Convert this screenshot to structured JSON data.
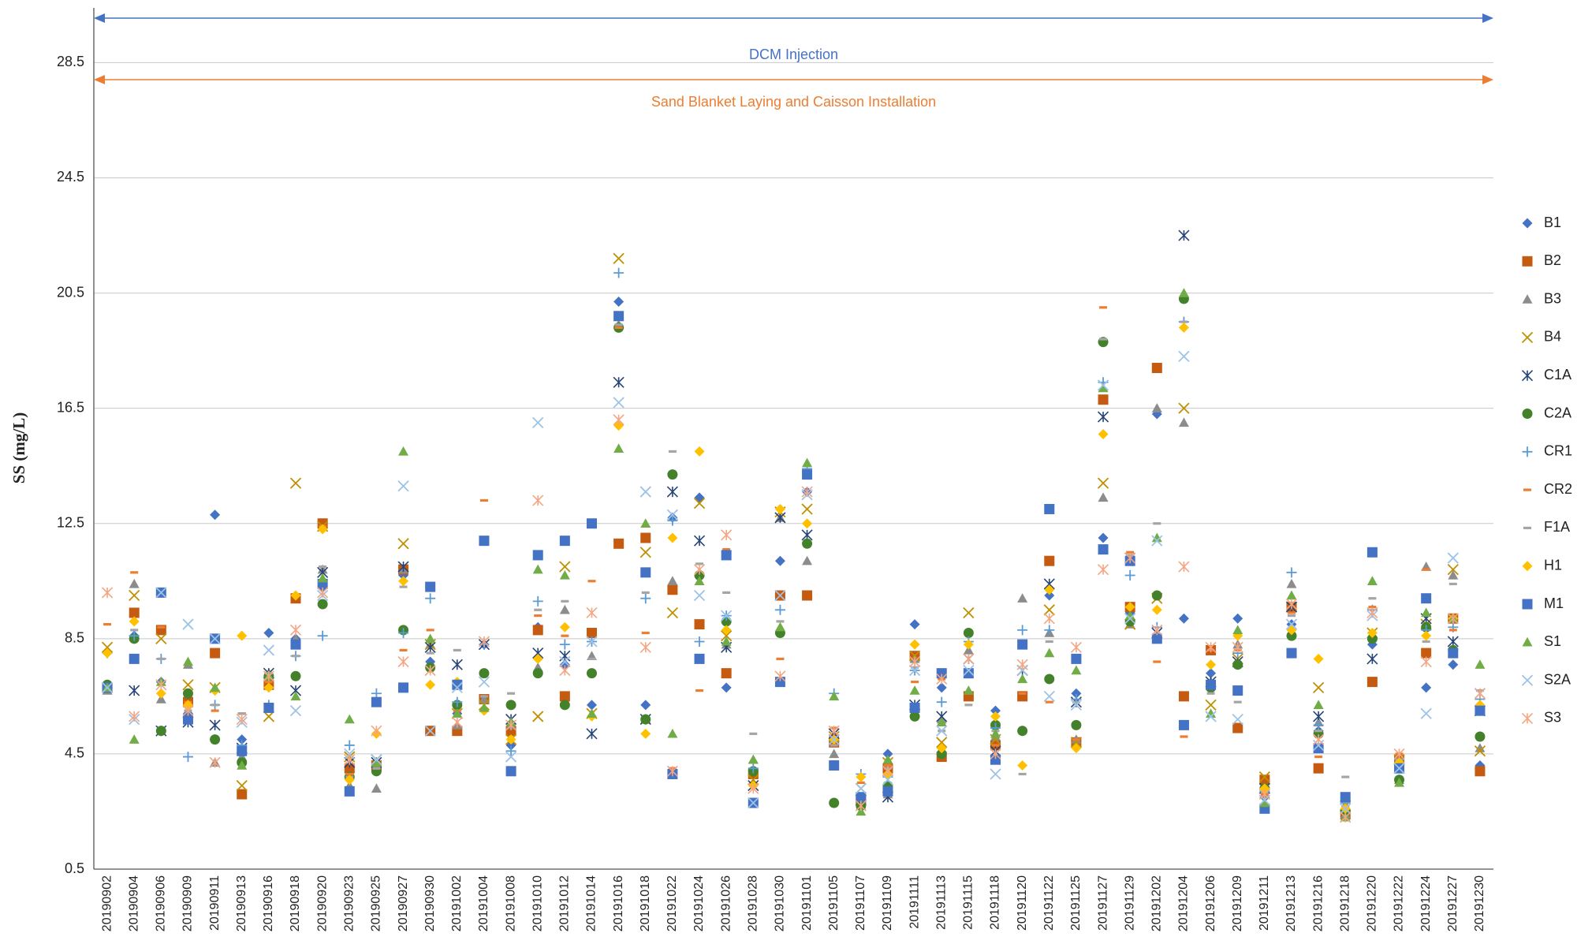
{
  "chart_data": {
    "type": "scatter",
    "y_label": "SS (mg/L)",
    "ylim": [
      0.5,
      30.4
    ],
    "yticks": [
      0.5,
      4.5,
      8.5,
      12.5,
      16.5,
      20.5,
      24.5,
      28.5
    ],
    "grid": true,
    "legend": "right",
    "annotations": [
      {
        "text": "DCM Injection",
        "color": "#4472c4"
      },
      {
        "text": "Sand Blanket Laying and Caisson Installation",
        "color": "#ed7d31"
      }
    ],
    "categories": [
      "20190902",
      "20190904",
      "20190906",
      "20190909",
      "20190911",
      "20190913",
      "20190916",
      "20190918",
      "20190920",
      "20190923",
      "20190925",
      "20190927",
      "20190930",
      "20191002",
      "20191004",
      "20191008",
      "20191010",
      "20191012",
      "20191014",
      "20191016",
      "20191018",
      "20191022",
      "20191024",
      "20191026",
      "20191028",
      "20191030",
      "20191101",
      "20191105",
      "20191107",
      "20191109",
      "20191111",
      "20191113",
      "20191115",
      "20191118",
      "20191120",
      "20191122",
      "20191125",
      "20191127",
      "20191129",
      "20191202",
      "20191204",
      "20191206",
      "20191209",
      "20191211",
      "20191213",
      "20191216",
      "20191218",
      "20191220",
      "20191222",
      "20191224",
      "20191227",
      "20191230"
    ],
    "series": [
      {
        "name": "B1",
        "color": "#4472c4",
        "marker": "diamond",
        "values": [
          6.8,
          8.6,
          7.0,
          5.9,
          12.8,
          5.0,
          8.7,
          8.5,
          10.3,
          3.3,
          4.0,
          10.7,
          7.7,
          5.9,
          8.3,
          4.8,
          8.9,
          7.6,
          6.2,
          20.2,
          6.2,
          12.7,
          13.4,
          6.8,
          2.8,
          11.2,
          13.6,
          5.1,
          2.8,
          4.5,
          9.0,
          6.8,
          6.5,
          6.0,
          5.3,
          10.0,
          6.6,
          12.0,
          9.4,
          16.3,
          9.2,
          7.3,
          9.2,
          3.0,
          9.0,
          5.3,
          2.5,
          8.3,
          4.1,
          6.8,
          7.6,
          4.1
        ]
      },
      {
        "name": "B2",
        "color": "#c55a11",
        "marker": "square",
        "values": [
          6.8,
          9.4,
          8.8,
          6.3,
          8.0,
          3.1,
          6.9,
          9.9,
          12.5,
          4.0,
          4.1,
          10.9,
          5.3,
          5.3,
          6.4,
          5.3,
          8.8,
          6.5,
          8.7,
          11.8,
          12.0,
          10.2,
          9.0,
          7.3,
          3.8,
          10.0,
          10.0,
          4.9,
          2.9,
          4.0,
          7.9,
          4.4,
          6.5,
          4.8,
          6.5,
          11.2,
          4.9,
          16.8,
          9.6,
          17.9,
          6.5,
          8.1,
          5.4,
          3.6,
          9.6,
          4.0,
          2.4,
          7.0,
          4.3,
          8.0,
          9.2,
          3.9
        ]
      },
      {
        "name": "B3",
        "color": "#8c8c8c",
        "marker": "triangle",
        "values": [
          6.7,
          10.4,
          6.4,
          7.6,
          4.2,
          4.4,
          7.3,
          8.5,
          10.9,
          3.4,
          3.3,
          10.9,
          8.3,
          5.5,
          6.4,
          5.5,
          7.5,
          9.5,
          7.9,
          19.4,
          5.7,
          10.5,
          10.8,
          8.3,
          4.3,
          12.7,
          11.2,
          4.5,
          2.7,
          3.1,
          7.8,
          5.7,
          8.1,
          5.1,
          9.9,
          8.7,
          5.0,
          13.4,
          9.0,
          16.5,
          16.0,
          7.0,
          8.3,
          3.1,
          10.4,
          5.6,
          2.4,
          8.6,
          3.6,
          11.0,
          10.7,
          4.7
        ]
      },
      {
        "name": "B4",
        "color": "#bf9000",
        "marker": "x",
        "values": [
          8.2,
          10.0,
          8.5,
          6.9,
          6.8,
          3.4,
          5.8,
          13.9,
          12.4,
          4.4,
          4.3,
          11.8,
          8.3,
          5.9,
          6.2,
          5.0,
          5.8,
          11.0,
          5.9,
          21.7,
          11.5,
          9.4,
          13.2,
          8.6,
          3.6,
          12.9,
          13.0,
          5.1,
          3.3,
          4.2,
          7.9,
          4.9,
          9.4,
          5.0,
          7.4,
          9.5,
          4.9,
          13.9,
          9.0,
          9.9,
          16.5,
          6.2,
          7.8,
          3.7,
          9.6,
          6.8,
          2.7,
          8.7,
          4.3,
          9.0,
          10.9,
          4.6
        ]
      },
      {
        "name": "C1A",
        "color": "#264478",
        "marker": "star",
        "values": [
          6.8,
          6.7,
          5.3,
          5.6,
          5.5,
          4.7,
          7.3,
          6.7,
          10.8,
          4.2,
          4.2,
          11.0,
          8.2,
          7.6,
          8.3,
          5.7,
          8.0,
          7.9,
          5.2,
          17.4,
          5.7,
          13.6,
          11.9,
          8.2,
          3.4,
          12.7,
          12.1,
          5.2,
          2.9,
          3.0,
          6.2,
          5.8,
          7.8,
          4.6,
          7.4,
          10.4,
          6.3,
          16.2,
          11.3,
          8.7,
          22.5,
          7.0,
          7.7,
          3.3,
          9.6,
          5.8,
          2.6,
          7.8,
          4.0,
          9.2,
          8.4,
          6.0
        ]
      },
      {
        "name": "C2A",
        "color": "#43822b",
        "marker": "circle",
        "values": [
          6.9,
          8.5,
          5.3,
          6.6,
          5.0,
          4.2,
          7.2,
          7.2,
          9.7,
          3.7,
          3.9,
          8.8,
          7.5,
          6.2,
          7.3,
          6.2,
          7.3,
          6.2,
          7.3,
          19.3,
          5.7,
          14.2,
          10.7,
          9.1,
          3.9,
          8.7,
          11.8,
          2.8,
          2.7,
          3.4,
          5.8,
          4.5,
          8.7,
          5.5,
          5.3,
          7.1,
          5.5,
          18.8,
          9.1,
          10.0,
          20.3,
          6.8,
          7.6,
          3.3,
          8.6,
          5.2,
          2.5,
          8.5,
          3.6,
          8.9,
          8.1,
          5.1
        ]
      },
      {
        "name": "CR1",
        "color": "#5b9bd5",
        "marker": "plus",
        "values": [
          8.0,
          8.6,
          7.8,
          4.4,
          6.2,
          4.8,
          6.2,
          7.9,
          8.6,
          4.8,
          6.6,
          8.7,
          9.9,
          6.3,
          8.3,
          4.6,
          9.8,
          8.3,
          8.4,
          21.2,
          9.9,
          12.6,
          8.4,
          9.3,
          4.0,
          9.5,
          14.4,
          6.6,
          3.8,
          3.7,
          7.4,
          6.3,
          8.4,
          5.4,
          8.8,
          8.8,
          6.4,
          17.4,
          10.7,
          8.9,
          19.5,
          6.9,
          8.0,
          3.2,
          10.8,
          5.5,
          2.8,
          9.5,
          4.3,
          8.8,
          8.9,
          6.4
        ]
      },
      {
        "name": "CR2",
        "color": "#ed7d31",
        "marker": "dash",
        "values": [
          9.0,
          10.8,
          8.9,
          6.3,
          6.0,
          5.9,
          7.0,
          8.2,
          12.4,
          3.8,
          4.0,
          8.1,
          8.8,
          6.0,
          13.3,
          4.0,
          9.3,
          8.6,
          10.5,
          19.3,
          8.7,
          4.0,
          6.7,
          11.6,
          4.2,
          7.8,
          14.3,
          5.4,
          3.5,
          4.1,
          7.0,
          7.1,
          6.6,
          4.8,
          6.6,
          6.3,
          5.0,
          20.0,
          11.5,
          7.7,
          5.1,
          8.1,
          8.1,
          3.1,
          9.4,
          4.4,
          2.7,
          9.6,
          4.5,
          10.9,
          8.8,
          6.0
        ]
      },
      {
        "name": "F1A",
        "color": "#a5a5a5",
        "marker": "dash",
        "values": [
          6.8,
          8.8,
          7.8,
          6.0,
          6.2,
          5.9,
          7.3,
          7.9,
          11.0,
          3.7,
          4.0,
          10.3,
          8.0,
          8.1,
          6.5,
          6.6,
          9.5,
          9.8,
          7.8,
          19.4,
          10.1,
          15.0,
          11.1,
          10.1,
          5.2,
          9.1,
          14.5,
          4.8,
          3.0,
          4.0,
          7.5,
          5.3,
          6.2,
          5.3,
          3.8,
          8.4,
          6.3,
          18.9,
          11.4,
          12.5,
          19.5,
          6.6,
          6.3,
          3.2,
          9.3,
          5.3,
          3.7,
          9.9,
          4.3,
          8.4,
          10.4,
          6.7
        ]
      },
      {
        "name": "H1",
        "color": "#ffc000",
        "marker": "diamond",
        "values": [
          8.0,
          9.1,
          6.6,
          6.2,
          6.7,
          8.6,
          6.8,
          10.0,
          12.3,
          3.6,
          5.2,
          10.5,
          6.9,
          7.0,
          6.0,
          5.0,
          7.8,
          8.9,
          5.8,
          15.9,
          5.2,
          12.0,
          15.0,
          8.8,
          3.4,
          13.0,
          12.5,
          5.0,
          3.7,
          3.8,
          8.3,
          4.7,
          8.3,
          5.8,
          4.1,
          10.2,
          4.7,
          15.6,
          9.6,
          9.5,
          19.3,
          7.6,
          8.6,
          3.3,
          8.8,
          7.8,
          2.6,
          8.7,
          4.2,
          8.6,
          9.2,
          6.2
        ]
      },
      {
        "name": "M1",
        "color": "#4472c4",
        "marker": "square",
        "values": [
          6.8,
          7.8,
          10.1,
          5.7,
          8.5,
          4.6,
          6.1,
          8.3,
          10.4,
          3.2,
          6.3,
          6.8,
          10.3,
          6.9,
          11.9,
          3.9,
          11.4,
          11.9,
          12.5,
          19.7,
          10.8,
          3.8,
          7.8,
          11.4,
          2.8,
          7.0,
          14.2,
          4.1,
          3.0,
          3.2,
          6.1,
          7.3,
          7.3,
          4.3,
          8.3,
          13.0,
          7.8,
          11.6,
          11.2,
          8.5,
          5.5,
          6.9,
          6.7,
          2.6,
          8.0,
          4.7,
          3.0,
          11.5,
          4.0,
          9.9,
          8.0,
          6.0
        ]
      },
      {
        "name": "S1",
        "color": "#70ad47",
        "marker": "triangle",
        "values": [
          6.8,
          5.0,
          7.0,
          7.7,
          6.8,
          4.1,
          7.2,
          6.5,
          10.6,
          5.7,
          4.2,
          15.0,
          8.5,
          5.9,
          6.1,
          5.6,
          10.9,
          10.7,
          5.9,
          15.1,
          12.5,
          5.2,
          10.5,
          8.4,
          4.3,
          8.9,
          14.6,
          6.5,
          2.5,
          4.3,
          6.7,
          5.6,
          6.7,
          5.2,
          7.1,
          8.0,
          7.4,
          17.2,
          9.3,
          12.0,
          20.5,
          5.9,
          8.8,
          2.8,
          10.0,
          6.2,
          2.3,
          10.5,
          3.5,
          9.4,
          9.2,
          7.6
        ]
      },
      {
        "name": "S2A",
        "color": "#9dc3e6",
        "marker": "x",
        "values": [
          6.8,
          5.7,
          10.1,
          9.0,
          8.5,
          5.6,
          8.1,
          6.0,
          10.0,
          4.5,
          4.3,
          13.8,
          5.3,
          6.8,
          7.0,
          4.4,
          16.0,
          7.7,
          8.4,
          16.7,
          13.6,
          12.8,
          10.0,
          9.3,
          2.8,
          10.0,
          13.5,
          5.0,
          3.3,
          3.6,
          7.4,
          5.3,
          7.4,
          3.8,
          7.4,
          6.5,
          6.2,
          17.3,
          9.2,
          11.9,
          18.3,
          5.8,
          5.7,
          2.9,
          9.0,
          4.8,
          2.6,
          9.3,
          4.0,
          5.9,
          11.3,
          6.6
        ]
      },
      {
        "name": "S3",
        "color": "#f4a582",
        "marker": "star",
        "values": [
          10.1,
          5.8,
          6.9,
          6.0,
          4.2,
          5.7,
          7.2,
          8.8,
          10.1,
          4.3,
          5.3,
          7.7,
          7.4,
          5.6,
          8.4,
          5.5,
          13.3,
          7.4,
          9.4,
          16.1,
          8.2,
          3.9,
          10.9,
          12.1,
          3.3,
          7.2,
          13.6,
          5.3,
          2.7,
          3.9,
          7.7,
          7.1,
          7.8,
          4.5,
          7.6,
          9.2,
          8.2,
          10.9,
          11.3,
          8.8,
          11.0,
          8.2,
          8.2,
          3.1,
          9.7,
          5.0,
          2.3,
          9.4,
          4.5,
          7.7,
          9.2,
          6.6
        ]
      }
    ]
  }
}
